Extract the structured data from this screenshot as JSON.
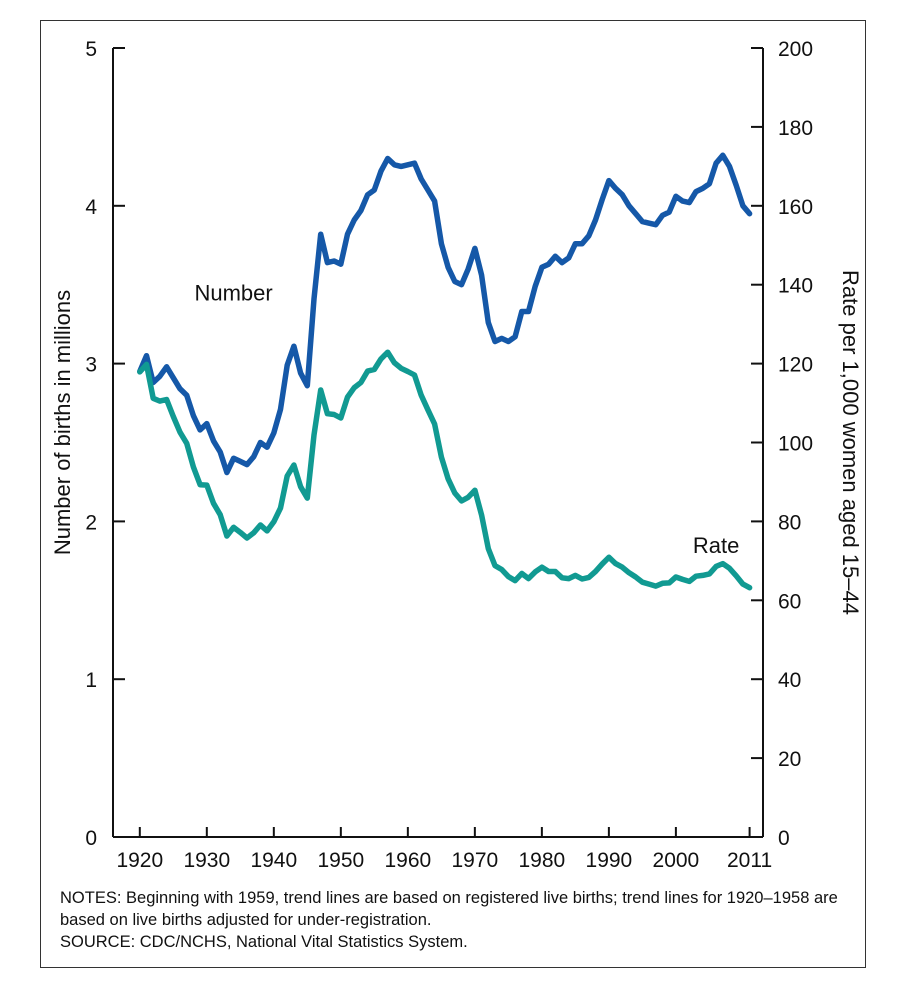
{
  "chart_data": {
    "type": "line",
    "x_ticks": [
      1920,
      1930,
      1940,
      1950,
      1960,
      1970,
      1980,
      1990,
      2000,
      2011
    ],
    "x_tick_labels": [
      "1920",
      "1930",
      "1940",
      "1950",
      "1960",
      "1970",
      "1980",
      "1990",
      "2000",
      "2011"
    ],
    "xlim": [
      1916,
      2013
    ],
    "y_left": {
      "label": "Number of births in millions",
      "lim": [
        0,
        5
      ],
      "ticks": [
        0,
        1,
        2,
        3,
        4,
        5
      ],
      "tick_labels": [
        "0",
        "1",
        "2",
        "3",
        "4",
        "5"
      ]
    },
    "y_right": {
      "label": "Rate per 1,000 women aged 15–44",
      "lim": [
        0,
        200
      ],
      "ticks": [
        0,
        20,
        40,
        60,
        80,
        100,
        120,
        140,
        160,
        180,
        200
      ],
      "tick_labels": [
        "0",
        "20",
        "40",
        "60",
        "80",
        "100",
        "120",
        "140",
        "160",
        "180",
        "200"
      ]
    },
    "grid": false,
    "series": [
      {
        "name": "Number",
        "axis": "left",
        "color": "#1558a8",
        "x": [
          1920,
          1921,
          1922,
          1923,
          1924,
          1925,
          1926,
          1927,
          1928,
          1929,
          1930,
          1931,
          1932,
          1933,
          1934,
          1935,
          1936,
          1937,
          1938,
          1939,
          1940,
          1941,
          1942,
          1943,
          1944,
          1945,
          1946,
          1947,
          1948,
          1949,
          1950,
          1951,
          1952,
          1953,
          1954,
          1955,
          1956,
          1957,
          1958,
          1959,
          1960,
          1961,
          1962,
          1963,
          1964,
          1965,
          1966,
          1967,
          1968,
          1969,
          1970,
          1971,
          1972,
          1973,
          1974,
          1975,
          1976,
          1977,
          1978,
          1979,
          1980,
          1981,
          1982,
          1983,
          1984,
          1985,
          1986,
          1987,
          1988,
          1989,
          1990,
          1991,
          1992,
          1993,
          1994,
          1995,
          1996,
          1997,
          1998,
          1999,
          2000,
          2001,
          2002,
          2003,
          2004,
          2005,
          2006,
          2007,
          2008,
          2009,
          2010,
          2011
        ],
        "values": [
          2.95,
          3.05,
          2.88,
          2.92,
          2.98,
          2.91,
          2.84,
          2.8,
          2.67,
          2.58,
          2.62,
          2.51,
          2.44,
          2.31,
          2.4,
          2.38,
          2.36,
          2.41,
          2.5,
          2.47,
          2.56,
          2.71,
          2.99,
          3.11,
          2.94,
          2.86,
          3.41,
          3.82,
          3.64,
          3.65,
          3.63,
          3.82,
          3.91,
          3.97,
          4.07,
          4.1,
          4.22,
          4.3,
          4.26,
          4.25,
          4.26,
          4.27,
          4.17,
          4.1,
          4.03,
          3.76,
          3.61,
          3.52,
          3.5,
          3.6,
          3.73,
          3.56,
          3.26,
          3.14,
          3.16,
          3.14,
          3.17,
          3.33,
          3.33,
          3.49,
          3.61,
          3.63,
          3.68,
          3.64,
          3.67,
          3.76,
          3.76,
          3.81,
          3.91,
          4.04,
          4.16,
          4.11,
          4.07,
          4.0,
          3.95,
          3.9,
          3.89,
          3.88,
          3.94,
          3.96,
          4.06,
          4.03,
          4.02,
          4.09,
          4.11,
          4.14,
          4.27,
          4.32,
          4.25,
          4.13,
          4.0,
          3.95
        ]
      },
      {
        "name": "Rate",
        "axis": "right",
        "color": "#119a92",
        "x": [
          1920,
          1921,
          1922,
          1923,
          1924,
          1925,
          1926,
          1927,
          1928,
          1929,
          1930,
          1931,
          1932,
          1933,
          1934,
          1935,
          1936,
          1937,
          1938,
          1939,
          1940,
          1941,
          1942,
          1943,
          1944,
          1945,
          1946,
          1947,
          1948,
          1949,
          1950,
          1951,
          1952,
          1953,
          1954,
          1955,
          1956,
          1957,
          1958,
          1959,
          1960,
          1961,
          1962,
          1963,
          1964,
          1965,
          1966,
          1967,
          1968,
          1969,
          1970,
          1971,
          1972,
          1973,
          1974,
          1975,
          1976,
          1977,
          1978,
          1979,
          1980,
          1981,
          1982,
          1983,
          1984,
          1985,
          1986,
          1987,
          1988,
          1989,
          1990,
          1991,
          1992,
          1993,
          1994,
          1995,
          1996,
          1997,
          1998,
          1999,
          2000,
          2001,
          2002,
          2003,
          2004,
          2005,
          2006,
          2007,
          2008,
          2009,
          2010,
          2011
        ],
        "values": [
          117.9,
          119.8,
          111.2,
          110.5,
          110.9,
          106.6,
          102.6,
          99.8,
          93.8,
          89.3,
          89.2,
          84.6,
          81.7,
          76.3,
          78.5,
          77.2,
          75.8,
          77.1,
          79.1,
          77.6,
          79.9,
          83.4,
          91.5,
          94.3,
          88.8,
          85.9,
          101.9,
          113.3,
          107.3,
          107.1,
          106.2,
          111.5,
          113.9,
          115.2,
          118.1,
          118.5,
          121.2,
          122.9,
          120.2,
          118.8,
          118.0,
          117.1,
          112.0,
          108.3,
          104.7,
          96.3,
          90.8,
          87.2,
          85.2,
          86.1,
          87.9,
          81.6,
          73.1,
          68.8,
          67.8,
          66.0,
          65.0,
          66.8,
          65.5,
          67.2,
          68.4,
          67.3,
          67.3,
          65.7,
          65.5,
          66.3,
          65.4,
          65.8,
          67.3,
          69.2,
          70.9,
          69.3,
          68.4,
          67.0,
          65.9,
          64.6,
          64.1,
          63.6,
          64.3,
          64.4,
          65.9,
          65.3,
          64.8,
          66.1,
          66.3,
          66.7,
          68.6,
          69.3,
          68.1,
          66.2,
          64.1,
          63.2
        ]
      }
    ],
    "annotations": [
      "Number",
      "Rate"
    ]
  },
  "notes": {
    "line1": "NOTES: Beginning with 1959, trend lines are based on registered live births; trend lines for 1920–1958 are based on live births adjusted for under-registration.",
    "line2": "SOURCE: CDC/NCHS, National Vital Statistics System."
  }
}
